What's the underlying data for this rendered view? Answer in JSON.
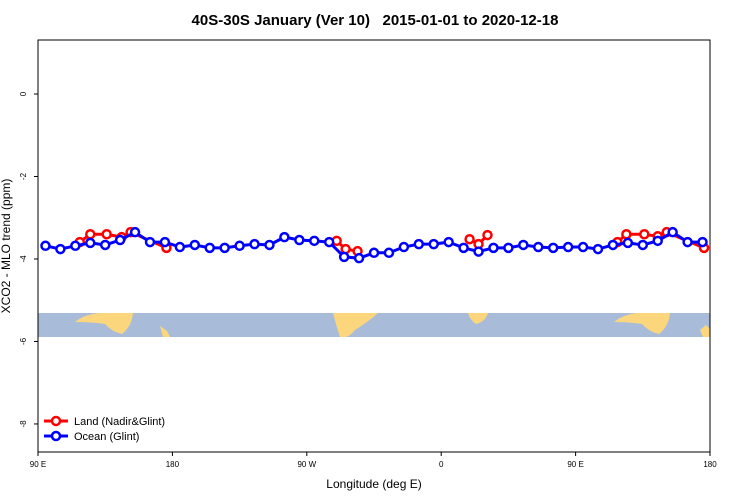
{
  "chart_data": {
    "type": "line",
    "title": "40S-30S January (Ver 10)   2015-01-01 to 2020-12-18",
    "xlabel": "Longitude (deg E)",
    "ylabel": "XCO2 - MLO trend (ppm)",
    "xlim": [
      90,
      540
    ],
    "xticks": [
      {
        "value": 90,
        "label": "90 E"
      },
      {
        "value": 180,
        "label": "180"
      },
      {
        "value": 270,
        "label": "90 W"
      },
      {
        "value": 360,
        "label": "0"
      },
      {
        "value": 450,
        "label": "90 E"
      },
      {
        "value": 540,
        "label": "180"
      }
    ],
    "ylim": [
      -8.68,
      1.31
    ],
    "yticks": [
      0,
      -2,
      -4,
      -6,
      -8
    ],
    "legend": "bottomleft",
    "series": [
      {
        "name": "Land (Nadir&Glint)",
        "color": "#ff0000",
        "x": [
          118,
          125,
          136,
          146,
          152,
          176,
          null,
          290,
          296,
          304,
          null,
          379,
          385,
          391,
          null,
          478,
          484,
          496,
          505,
          511,
          536
        ],
        "values": [
          -3.59,
          -3.4,
          -3.4,
          -3.47,
          -3.35,
          -3.73,
          null,
          -3.56,
          -3.76,
          -3.81,
          null,
          -3.52,
          -3.64,
          -3.42,
          null,
          -3.59,
          -3.4,
          -3.4,
          -3.45,
          -3.35,
          -3.73
        ]
      },
      {
        "name": "Ocean (Glint)",
        "color": "#0000ff",
        "x": [
          95,
          105,
          115,
          125,
          135,
          145,
          155,
          165,
          175,
          185,
          195,
          205,
          215,
          225,
          235,
          245,
          255,
          265,
          275,
          285,
          295,
          305,
          315,
          325,
          335,
          345,
          355,
          365,
          375,
          385,
          395,
          405,
          415,
          425,
          435,
          445,
          455,
          465,
          475,
          485,
          495,
          505,
          515,
          525,
          535
        ],
        "values": [
          -3.68,
          -3.76,
          -3.68,
          -3.61,
          -3.66,
          -3.54,
          -3.35,
          -3.59,
          -3.59,
          -3.71,
          -3.66,
          -3.73,
          -3.73,
          -3.68,
          -3.64,
          -3.66,
          -3.47,
          -3.54,
          -3.56,
          -3.59,
          -3.95,
          -3.98,
          -3.85,
          -3.85,
          -3.71,
          -3.64,
          -3.64,
          -3.59,
          -3.73,
          -3.82,
          -3.73,
          -3.73,
          -3.66,
          -3.71,
          -3.73,
          -3.71,
          -3.71,
          -3.76,
          -3.66,
          -3.61,
          -3.66,
          -3.56,
          -3.35,
          -3.59,
          -3.59
        ]
      }
    ]
  }
}
